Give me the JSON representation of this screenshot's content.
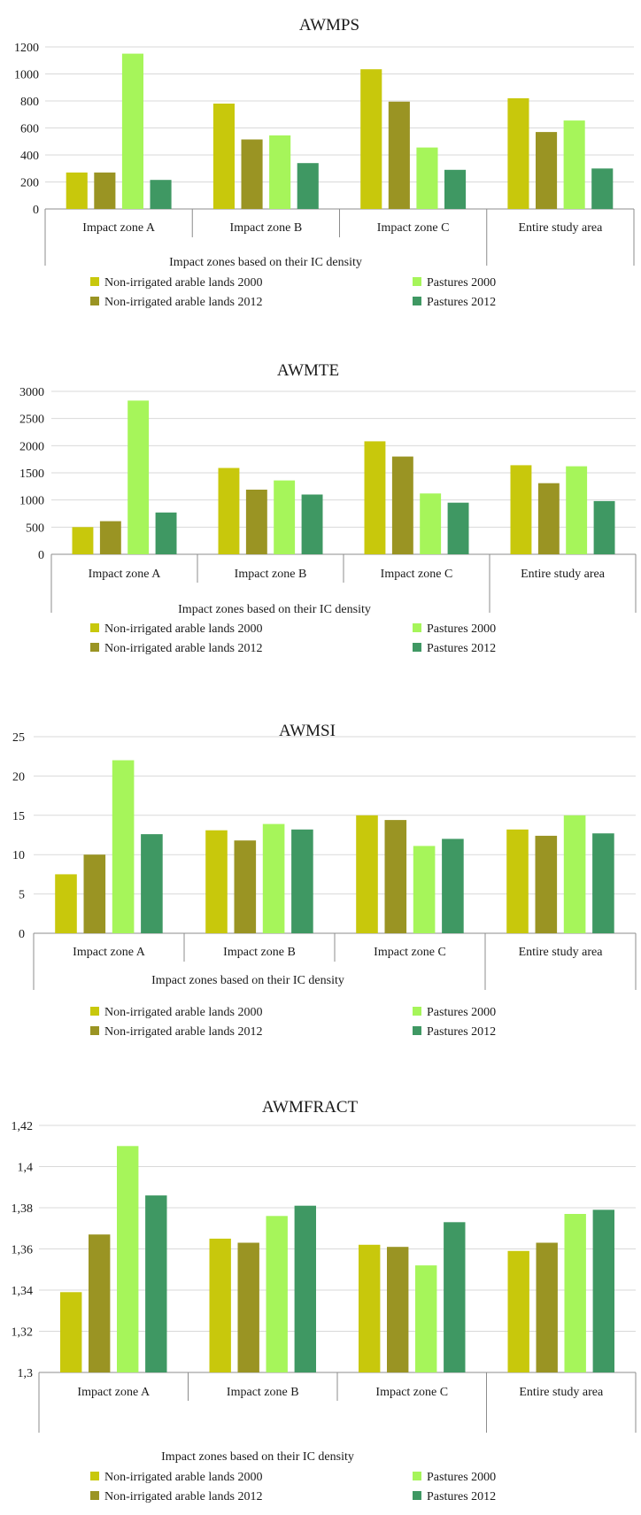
{
  "chart_data": [
    {
      "type": "bar",
      "title": "AWMPS",
      "xlabel": "Impact zones based on their IC density",
      "ylabel": "",
      "categories": [
        "Impact zone A",
        "Impact zone B",
        "Impact zone C",
        "Entire study area"
      ],
      "ylim": [
        0,
        1200
      ],
      "yticks": [
        "0",
        "200",
        "400",
        "600",
        "800",
        "1000",
        "1200"
      ],
      "series": [
        {
          "name": "Non-irrigated arable lands 2000",
          "values": [
            270,
            780,
            1035,
            820
          ]
        },
        {
          "name": "Non-irrigated arable lands 2012",
          "values": [
            270,
            515,
            795,
            570
          ]
        },
        {
          "name": "Pastures 2000",
          "values": [
            1150,
            545,
            455,
            655
          ]
        },
        {
          "name": "Pastures 2012",
          "values": [
            215,
            340,
            290,
            300
          ]
        }
      ],
      "legend_position": "bottom"
    },
    {
      "type": "bar",
      "title": "AWMTE",
      "xlabel": "Impact zones based on their IC density",
      "ylabel": "",
      "categories": [
        "Impact zone A",
        "Impact zone B",
        "Impact zone C",
        "Entire study area"
      ],
      "ylim": [
        0,
        3000
      ],
      "yticks": [
        "0",
        "500",
        "1000",
        "1500",
        "2000",
        "2500",
        "3000"
      ],
      "series": [
        {
          "name": "Non-irrigated arable lands 2000",
          "values": [
            500,
            1590,
            2080,
            1640
          ]
        },
        {
          "name": "Non-irrigated arable lands 2012",
          "values": [
            610,
            1190,
            1800,
            1310
          ]
        },
        {
          "name": "Pastures 2000",
          "values": [
            2830,
            1360,
            1120,
            1620
          ]
        },
        {
          "name": "Pastures 2012",
          "values": [
            770,
            1100,
            950,
            980
          ]
        }
      ],
      "legend_position": "bottom"
    },
    {
      "type": "bar",
      "title": "AWMSI",
      "xlabel": "Impact zones based on their IC density",
      "ylabel": "",
      "categories": [
        "Impact zone A",
        "Impact zone B",
        "Impact zone C",
        "Entire study area"
      ],
      "ylim": [
        0,
        25
      ],
      "yticks": [
        "0",
        "5",
        "10",
        "15",
        "20",
        "25"
      ],
      "series": [
        {
          "name": "Non-irrigated arable lands 2000",
          "values": [
            7.5,
            13.1,
            15.0,
            13.2
          ]
        },
        {
          "name": "Non-irrigated arable lands 2012",
          "values": [
            10.0,
            11.8,
            14.4,
            12.4
          ]
        },
        {
          "name": "Pastures 2000",
          "values": [
            22.0,
            13.9,
            11.1,
            15.0
          ]
        },
        {
          "name": "Pastures 2012",
          "values": [
            12.6,
            13.2,
            12.0,
            12.7
          ]
        }
      ],
      "legend_position": "bottom"
    },
    {
      "type": "bar",
      "title": "AWMFRACT",
      "xlabel": "Impact zones based on their IC density",
      "ylabel": "",
      "categories": [
        "Impact zone A",
        "Impact zone B",
        "Impact zone C",
        "Entire study area"
      ],
      "ylim": [
        1.3,
        1.42
      ],
      "yticks": [
        "1,3",
        "1,32",
        "1,34",
        "1,36",
        "1,38",
        "1,4",
        "1,42"
      ],
      "series": [
        {
          "name": "Non-irrigated arable lands 2000",
          "values": [
            1.339,
            1.365,
            1.362,
            1.359
          ]
        },
        {
          "name": "Non-irrigated arable lands 2012",
          "values": [
            1.367,
            1.363,
            1.361,
            1.363
          ]
        },
        {
          "name": "Pastures 2000",
          "values": [
            1.41,
            1.376,
            1.352,
            1.377
          ]
        },
        {
          "name": "Pastures 2012",
          "values": [
            1.386,
            1.381,
            1.373,
            1.379
          ]
        }
      ],
      "legend_position": "bottom"
    }
  ],
  "colors": {
    "series": [
      "#c8c80c",
      "#9a9423",
      "#a6f55a",
      "#3f9863"
    ],
    "grid": "#d9d9d9",
    "axis": "#8c8c8c"
  }
}
